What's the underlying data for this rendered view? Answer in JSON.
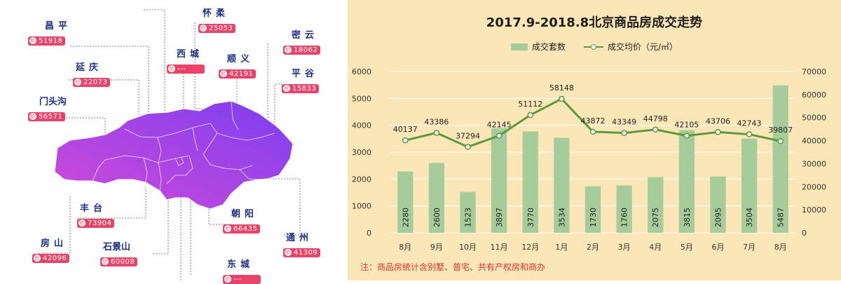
{
  "map": {
    "districts": [
      {
        "id": "changping",
        "name": "昌平",
        "value": "51918"
      },
      {
        "id": "huairou",
        "name": "怀柔",
        "value": "25053"
      },
      {
        "id": "miyun",
        "name": "密云",
        "value": "18062"
      },
      {
        "id": "xicheng",
        "name": "西城",
        "value": "---"
      },
      {
        "id": "shunyi",
        "name": "顺义",
        "value": "42191"
      },
      {
        "id": "yanqing",
        "name": "延庆",
        "value": "22073"
      },
      {
        "id": "pinggu",
        "name": "平谷",
        "value": "15833"
      },
      {
        "id": "mentougou",
        "name": "门头沟",
        "value": "56571"
      },
      {
        "id": "fengtai",
        "name": "丰台",
        "value": "73904"
      },
      {
        "id": "chaoyang",
        "name": "朝阳",
        "value": "66435"
      },
      {
        "id": "fangshan",
        "name": "房山",
        "value": "42096"
      },
      {
        "id": "shijingshan",
        "name": "石景山",
        "value": "60008"
      },
      {
        "id": "tongzhou",
        "name": "通州",
        "value": "41309"
      },
      {
        "id": "dongcheng",
        "name": "东城",
        "value": "---"
      }
    ],
    "badge_text": "价",
    "colors": {
      "gradient_start": "#d24bd8",
      "gradient_end": "#7c3ff0",
      "label": "#1b2f86",
      "pill": "#e8446a"
    }
  },
  "chart": {
    "title": "2017.9-2018.8北京商品房成交走势",
    "legend": {
      "bar": "成交套数",
      "line": "成交均价（元/㎡）"
    },
    "footnote": "注：商品房统计含别墅、普宅、共有产权房和商办",
    "colors": {
      "background": "#fbe6b8",
      "bar": "#a7cc9b",
      "line": "#5b9a3c"
    }
  },
  "chart_data": {
    "type": "bar",
    "title": "2017.9-2018.8北京商品房成交走势",
    "categories": [
      "8月",
      "9月",
      "10月",
      "11月",
      "12月",
      "1月",
      "2月",
      "3月",
      "4月",
      "5月",
      "6月",
      "7月",
      "8月"
    ],
    "series": [
      {
        "name": "成交套数",
        "type": "bar",
        "axis": "left",
        "values": [
          2280,
          2600,
          1523,
          3897,
          3770,
          3534,
          1730,
          1760,
          2075,
          3815,
          2095,
          3504,
          5487
        ]
      },
      {
        "name": "成交均价（元/㎡）",
        "type": "line",
        "axis": "right",
        "values": [
          40137,
          43386,
          37294,
          42145,
          51112,
          58148,
          43872,
          43349,
          44798,
          42105,
          43706,
          42743,
          39807
        ]
      }
    ],
    "ylim_left": [
      0,
      6000
    ],
    "yticks_left": [
      0,
      1000,
      2000,
      3000,
      4000,
      5000,
      6000
    ],
    "ylim_right": [
      0,
      70000
    ],
    "yticks_right": [
      0,
      10000,
      20000,
      30000,
      40000,
      50000,
      60000,
      70000
    ],
    "legend_position": "top-center",
    "grid": true
  }
}
